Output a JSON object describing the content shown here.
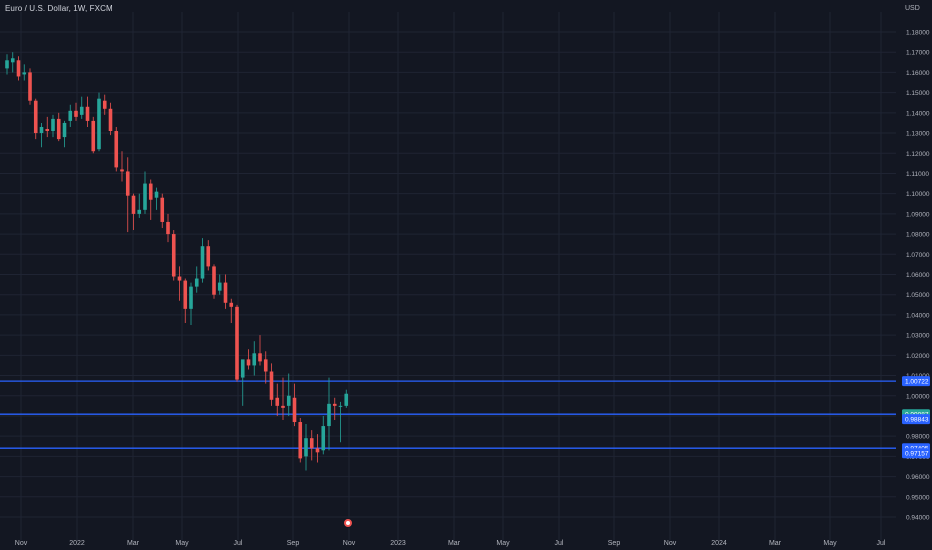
{
  "header": {
    "symbol_title": "Euro / U.S. Dollar, 1W, FXCM",
    "currency": "USD"
  },
  "colors": {
    "background": "#131722",
    "grid": "#1f2433",
    "up": "#26a69a",
    "down": "#ef5350",
    "axis_text": "#b2b5be",
    "hline": "#2962ff",
    "tag_blue": "#2962ff",
    "tag_teal": "#26a69a"
  },
  "chart_data": {
    "type": "candlestick",
    "ylim": [
      0.934,
      1.187
    ],
    "y_ticks": [
      "1.18000",
      "1.17000",
      "1.16000",
      "1.15000",
      "1.14000",
      "1.13000",
      "1.12000",
      "1.11000",
      "1.10000",
      "1.09000",
      "1.08000",
      "1.07000",
      "1.06000",
      "1.05000",
      "1.04000",
      "1.03000",
      "1.02000",
      "1.01000",
      "1.00000",
      "0.99000",
      "0.98000",
      "0.97000",
      "0.96000",
      "0.95000",
      "0.94000"
    ],
    "x_ticks": [
      "Nov",
      "2022",
      "Mar",
      "May",
      "Jul",
      "Sep",
      "Nov",
      "2023",
      "Mar",
      "May",
      "Jul",
      "Sep",
      "Nov",
      "2024",
      "Mar",
      "May",
      "Jul"
    ],
    "candles": [
      {
        "o": 1.162,
        "h": 1.169,
        "l": 1.159,
        "c": 1.166
      },
      {
        "o": 1.165,
        "h": 1.17,
        "l": 1.16,
        "c": 1.167
      },
      {
        "o": 1.166,
        "h": 1.168,
        "l": 1.156,
        "c": 1.158
      },
      {
        "o": 1.159,
        "h": 1.164,
        "l": 1.156,
        "c": 1.16
      },
      {
        "o": 1.16,
        "h": 1.162,
        "l": 1.144,
        "c": 1.146
      },
      {
        "o": 1.146,
        "h": 1.147,
        "l": 1.127,
        "c": 1.13
      },
      {
        "o": 1.13,
        "h": 1.135,
        "l": 1.123,
        "c": 1.133
      },
      {
        "o": 1.132,
        "h": 1.138,
        "l": 1.128,
        "c": 1.131
      },
      {
        "o": 1.131,
        "h": 1.139,
        "l": 1.128,
        "c": 1.137
      },
      {
        "o": 1.137,
        "h": 1.14,
        "l": 1.126,
        "c": 1.127
      },
      {
        "o": 1.128,
        "h": 1.136,
        "l": 1.123,
        "c": 1.135
      },
      {
        "o": 1.136,
        "h": 1.144,
        "l": 1.133,
        "c": 1.141
      },
      {
        "o": 1.141,
        "h": 1.145,
        "l": 1.136,
        "c": 1.138
      },
      {
        "o": 1.139,
        "h": 1.148,
        "l": 1.137,
        "c": 1.143
      },
      {
        "o": 1.143,
        "h": 1.148,
        "l": 1.133,
        "c": 1.136
      },
      {
        "o": 1.136,
        "h": 1.138,
        "l": 1.12,
        "c": 1.121
      },
      {
        "o": 1.122,
        "h": 1.15,
        "l": 1.121,
        "c": 1.147
      },
      {
        "o": 1.146,
        "h": 1.149,
        "l": 1.139,
        "c": 1.142
      },
      {
        "o": 1.142,
        "h": 1.145,
        "l": 1.129,
        "c": 1.131
      },
      {
        "o": 1.131,
        "h": 1.133,
        "l": 1.111,
        "c": 1.113
      },
      {
        "o": 1.112,
        "h": 1.121,
        "l": 1.106,
        "c": 1.111
      },
      {
        "o": 1.111,
        "h": 1.118,
        "l": 1.081,
        "c": 1.099
      },
      {
        "o": 1.099,
        "h": 1.1,
        "l": 1.082,
        "c": 1.09
      },
      {
        "o": 1.09,
        "h": 1.1,
        "l": 1.088,
        "c": 1.092
      },
      {
        "o": 1.092,
        "h": 1.111,
        "l": 1.09,
        "c": 1.105
      },
      {
        "o": 1.105,
        "h": 1.107,
        "l": 1.087,
        "c": 1.097
      },
      {
        "o": 1.098,
        "h": 1.103,
        "l": 1.092,
        "c": 1.101
      },
      {
        "o": 1.098,
        "h": 1.1,
        "l": 1.083,
        "c": 1.086
      },
      {
        "o": 1.086,
        "h": 1.09,
        "l": 1.076,
        "c": 1.08
      },
      {
        "o": 1.08,
        "h": 1.082,
        "l": 1.057,
        "c": 1.059
      },
      {
        "o": 1.059,
        "h": 1.064,
        "l": 1.047,
        "c": 1.057
      },
      {
        "o": 1.057,
        "h": 1.058,
        "l": 1.036,
        "c": 1.043
      },
      {
        "o": 1.043,
        "h": 1.056,
        "l": 1.035,
        "c": 1.054
      },
      {
        "o": 1.054,
        "h": 1.064,
        "l": 1.051,
        "c": 1.058
      },
      {
        "o": 1.058,
        "h": 1.078,
        "l": 1.056,
        "c": 1.074
      },
      {
        "o": 1.074,
        "h": 1.077,
        "l": 1.062,
        "c": 1.064
      },
      {
        "o": 1.064,
        "h": 1.065,
        "l": 1.048,
        "c": 1.05
      },
      {
        "o": 1.052,
        "h": 1.06,
        "l": 1.05,
        "c": 1.056
      },
      {
        "o": 1.056,
        "h": 1.06,
        "l": 1.043,
        "c": 1.046
      },
      {
        "o": 1.046,
        "h": 1.048,
        "l": 1.036,
        "c": 1.044
      },
      {
        "o": 1.044,
        "h": 1.045,
        "l": 1.007,
        "c": 1.008
      },
      {
        "o": 1.009,
        "h": 1.016,
        "l": 0.995,
        "c": 1.018
      },
      {
        "o": 1.018,
        "h": 1.023,
        "l": 1.013,
        "c": 1.015
      },
      {
        "o": 1.015,
        "h": 1.027,
        "l": 1.01,
        "c": 1.021
      },
      {
        "o": 1.021,
        "h": 1.03,
        "l": 1.015,
        "c": 1.017
      },
      {
        "o": 1.018,
        "h": 1.022,
        "l": 1.006,
        "c": 1.012
      },
      {
        "o": 1.012,
        "h": 1.016,
        "l": 0.995,
        "c": 0.998
      },
      {
        "o": 0.999,
        "h": 1.006,
        "l": 0.99,
        "c": 0.995
      },
      {
        "o": 0.995,
        "h": 1.009,
        "l": 0.988,
        "c": 0.994
      },
      {
        "o": 0.995,
        "h": 1.011,
        "l": 0.99,
        "c": 1.0
      },
      {
        "o": 0.999,
        "h": 1.006,
        "l": 0.985,
        "c": 0.987
      },
      {
        "o": 0.987,
        "h": 0.989,
        "l": 0.967,
        "c": 0.969
      },
      {
        "o": 0.97,
        "h": 0.986,
        "l": 0.963,
        "c": 0.979
      },
      {
        "o": 0.979,
        "h": 0.983,
        "l": 0.968,
        "c": 0.974
      },
      {
        "o": 0.974,
        "h": 0.981,
        "l": 0.967,
        "c": 0.972
      },
      {
        "o": 0.973,
        "h": 0.99,
        "l": 0.971,
        "c": 0.985
      },
      {
        "o": 0.985,
        "h": 1.009,
        "l": 0.973,
        "c": 0.996
      },
      {
        "o": 0.996,
        "h": 0.999,
        "l": 0.988,
        "c": 0.995
      },
      {
        "o": 0.995,
        "h": 0.997,
        "l": 0.977,
        "c": 0.995
      },
      {
        "o": 0.995,
        "h": 1.003,
        "l": 0.994,
        "c": 1.001
      }
    ],
    "horizontal_lines": [
      1.00722,
      0.99087,
      0.97405
    ],
    "price_tags": [
      {
        "value": "1.00722",
        "color": "blue",
        "price": 1.00722
      },
      {
        "value": "0.99087",
        "color": "teal",
        "price": 0.99087
      },
      {
        "value": "0.98843",
        "color": "blue",
        "price": 0.98843
      },
      {
        "value": "0.97405",
        "color": "blue",
        "price": 0.97405
      },
      {
        "value": "0.97157",
        "color": "blue",
        "price": 0.97157
      }
    ]
  }
}
